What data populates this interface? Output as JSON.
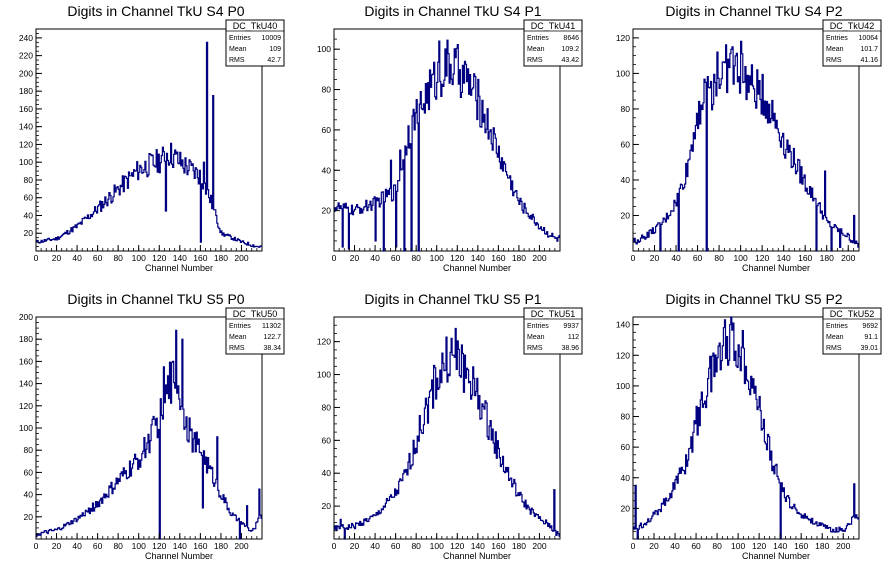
{
  "chart_data": [
    {
      "type": "histogram",
      "title": "Digits in Channel TkU S4 P0",
      "xlabel": "Channel Number",
      "xlim": [
        0,
        220
      ],
      "ylim": [
        0,
        250
      ],
      "xticks": [
        "0",
        "20",
        "40",
        "60",
        "80",
        "100",
        "120",
        "140",
        "160",
        "180",
        "200"
      ],
      "yticks": [
        "20",
        "40",
        "60",
        "80",
        "100",
        "120",
        "140",
        "160",
        "180",
        "200",
        "220",
        "240"
      ],
      "yticks_values": [
        20,
        40,
        60,
        80,
        100,
        120,
        140,
        160,
        180,
        200,
        220,
        240
      ],
      "stats": {
        "name": "DC_TkU40",
        "entries_label": "Entries",
        "entries": "10009",
        "mean_label": "Mean",
        "mean": "109",
        "rms_label": "RMS",
        "rms": "42.7"
      },
      "line_color": "#000080",
      "profile": [
        [
          0,
          10
        ],
        [
          20,
          14
        ],
        [
          40,
          28
        ],
        [
          60,
          48
        ],
        [
          80,
          70
        ],
        [
          100,
          92
        ],
        [
          120,
          102
        ],
        [
          130,
          110
        ],
        [
          140,
          100
        ],
        [
          150,
          92
        ],
        [
          160,
          84
        ],
        [
          170,
          56
        ],
        [
          180,
          20
        ],
        [
          200,
          10
        ],
        [
          215,
          5
        ]
      ],
      "spikes": [
        [
          126,
          45
        ],
        [
          127,
          110
        ],
        [
          160,
          10
        ],
        [
          163,
          100
        ],
        [
          166,
          235
        ],
        [
          168,
          60
        ],
        [
          172,
          175
        ],
        [
          175,
          40
        ]
      ]
    },
    {
      "type": "histogram",
      "title": "Digits in Channel TkU S4 P1",
      "xlabel": "Channel Number",
      "xlim": [
        0,
        220
      ],
      "ylim": [
        0,
        110
      ],
      "xticks": [
        "0",
        "20",
        "40",
        "60",
        "80",
        "100",
        "120",
        "140",
        "160",
        "180",
        "200"
      ],
      "yticks": [
        "20",
        "40",
        "60",
        "80",
        "100"
      ],
      "yticks_values": [
        20,
        40,
        60,
        80,
        100
      ],
      "stats": {
        "name": "DC_TkU41",
        "entries_label": "Entries",
        "entries": "8646",
        "mean_label": "Mean",
        "mean": "109.2",
        "rms_label": "RMS",
        "rms": "43.42"
      },
      "line_color": "#000080",
      "profile": [
        [
          0,
          22
        ],
        [
          20,
          20
        ],
        [
          40,
          24
        ],
        [
          60,
          30
        ],
        [
          70,
          55
        ],
        [
          80,
          68
        ],
        [
          90,
          78
        ],
        [
          100,
          86
        ],
        [
          110,
          92
        ],
        [
          120,
          90
        ],
        [
          130,
          84
        ],
        [
          140,
          74
        ],
        [
          150,
          62
        ],
        [
          160,
          48
        ],
        [
          170,
          36
        ],
        [
          180,
          24
        ],
        [
          200,
          12
        ],
        [
          215,
          6
        ]
      ],
      "spikes": [
        [
          8,
          2
        ],
        [
          14,
          1
        ],
        [
          40,
          5
        ],
        [
          48,
          0
        ],
        [
          55,
          45
        ],
        [
          60,
          2
        ],
        [
          64,
          50
        ],
        [
          68,
          0
        ],
        [
          72,
          62
        ],
        [
          75,
          0
        ],
        [
          78,
          60
        ],
        [
          82,
          0
        ],
        [
          86,
          70
        ],
        [
          102,
          104
        ],
        [
          140,
          85
        ]
      ]
    },
    {
      "type": "histogram",
      "title": "Digits in Channel TkU S4 P2",
      "xlabel": "Channel Number",
      "xlim": [
        0,
        210
      ],
      "ylim": [
        0,
        125
      ],
      "xticks": [
        "0",
        "20",
        "40",
        "60",
        "80",
        "100",
        "120",
        "140",
        "160",
        "180",
        "200"
      ],
      "yticks": [
        "20",
        "40",
        "60",
        "80",
        "100",
        "120"
      ],
      "yticks_values": [
        20,
        40,
        60,
        80,
        100,
        120
      ],
      "stats": {
        "name": "DC_TkU42",
        "entries_label": "Entries",
        "entries": "10064",
        "mean_label": "Mean",
        "mean": "101.7",
        "rms_label": "RMS",
        "rms": "41.16"
      },
      "line_color": "#000080",
      "profile": [
        [
          0,
          5
        ],
        [
          10,
          8
        ],
        [
          20,
          12
        ],
        [
          30,
          18
        ],
        [
          40,
          28
        ],
        [
          50,
          46
        ],
        [
          60,
          80
        ],
        [
          70,
          90
        ],
        [
          80,
          98
        ],
        [
          90,
          105
        ],
        [
          100,
          100
        ],
        [
          110,
          92
        ],
        [
          120,
          88
        ],
        [
          130,
          76
        ],
        [
          140,
          62
        ],
        [
          150,
          50
        ],
        [
          160,
          38
        ],
        [
          170,
          28
        ],
        [
          180,
          16
        ],
        [
          190,
          12
        ],
        [
          200,
          8
        ],
        [
          210,
          2
        ]
      ],
      "spikes": [
        [
          25,
          0
        ],
        [
          42,
          0
        ],
        [
          68,
          0
        ],
        [
          78,
          112
        ],
        [
          92,
          115
        ],
        [
          100,
          118
        ],
        [
          170,
          0
        ],
        [
          178,
          45
        ],
        [
          184,
          0
        ],
        [
          192,
          2
        ],
        [
          205,
          20
        ]
      ]
    },
    {
      "type": "histogram",
      "title": "Digits in Channel TkU S5 P0",
      "xlabel": "Channel Number",
      "xlim": [
        0,
        220
      ],
      "ylim": [
        0,
        200
      ],
      "xticks": [
        "0",
        "20",
        "40",
        "60",
        "80",
        "100",
        "120",
        "140",
        "160",
        "180",
        "200"
      ],
      "yticks": [
        "20",
        "40",
        "60",
        "80",
        "100",
        "120",
        "140",
        "160",
        "180",
        "200"
      ],
      "yticks_values": [
        20,
        40,
        60,
        80,
        100,
        120,
        140,
        160,
        180,
        200
      ],
      "stats": {
        "name": "DC_TkU50",
        "entries_label": "Entries",
        "entries": "11302",
        "mean_label": "Mean",
        "mean": "122.7",
        "rms_label": "RMS",
        "rms": "38.34"
      },
      "line_color": "#000080",
      "profile": [
        [
          0,
          4
        ],
        [
          20,
          8
        ],
        [
          40,
          18
        ],
        [
          60,
          32
        ],
        [
          80,
          52
        ],
        [
          100,
          72
        ],
        [
          110,
          90
        ],
        [
          120,
          110
        ],
        [
          130,
          140
        ],
        [
          135,
          150
        ],
        [
          140,
          130
        ],
        [
          150,
          92
        ],
        [
          160,
          80
        ],
        [
          170,
          60
        ],
        [
          180,
          40
        ],
        [
          190,
          22
        ],
        [
          200,
          14
        ],
        [
          210,
          6
        ],
        [
          218,
          20
        ]
      ],
      "spikes": [
        [
          120,
          0
        ],
        [
          124,
          155
        ],
        [
          136,
          188
        ],
        [
          142,
          180
        ],
        [
          162,
          28
        ],
        [
          176,
          92
        ],
        [
          198,
          0
        ],
        [
          205,
          30
        ],
        [
          217,
          45
        ]
      ]
    },
    {
      "type": "histogram",
      "title": "Digits in Channel TkU S5 P1",
      "xlabel": "Channel Number",
      "xlim": [
        0,
        220
      ],
      "ylim": [
        0,
        135
      ],
      "xticks": [
        "0",
        "20",
        "40",
        "60",
        "80",
        "100",
        "120",
        "140",
        "160",
        "180",
        "200"
      ],
      "yticks": [
        "20",
        "40",
        "60",
        "80",
        "100",
        "120"
      ],
      "yticks_values": [
        20,
        40,
        60,
        80,
        100,
        120
      ],
      "stats": {
        "name": "DC_TkU51",
        "entries_label": "Entries",
        "entries": "9937",
        "mean_label": "Mean",
        "mean": "112",
        "rms_label": "RMS",
        "rms": "38.96"
      },
      "line_color": "#000080",
      "profile": [
        [
          0,
          6
        ],
        [
          20,
          8
        ],
        [
          40,
          14
        ],
        [
          60,
          28
        ],
        [
          70,
          40
        ],
        [
          80,
          60
        ],
        [
          90,
          80
        ],
        [
          100,
          98
        ],
        [
          110,
          110
        ],
        [
          120,
          108
        ],
        [
          130,
          100
        ],
        [
          140,
          86
        ],
        [
          150,
          70
        ],
        [
          160,
          52
        ],
        [
          170,
          38
        ],
        [
          180,
          26
        ],
        [
          190,
          18
        ],
        [
          200,
          12
        ],
        [
          210,
          8
        ],
        [
          218,
          2
        ]
      ],
      "spikes": [
        [
          6,
          12
        ],
        [
          10,
          0
        ],
        [
          114,
          122
        ],
        [
          118,
          128
        ],
        [
          124,
          118
        ],
        [
          214,
          30
        ]
      ]
    },
    {
      "type": "histogram",
      "title": "Digits in Channel TkU S5 P2",
      "xlabel": "Channel Number",
      "xlim": [
        0,
        215
      ],
      "ylim": [
        0,
        145
      ],
      "xticks": [
        "0",
        "20",
        "40",
        "60",
        "80",
        "100",
        "120",
        "140",
        "160",
        "180",
        "200"
      ],
      "yticks": [
        "20",
        "40",
        "60",
        "80",
        "100",
        "120",
        "140"
      ],
      "yticks_values": [
        20,
        40,
        60,
        80,
        100,
        120,
        140
      ],
      "stats": {
        "name": "DC_TkU52",
        "entries_label": "Entries",
        "entries": "9692",
        "mean_label": "Mean",
        "mean": "91.1",
        "rms_label": "RMS",
        "rms": "39.01"
      },
      "line_color": "#000080",
      "profile": [
        [
          0,
          6
        ],
        [
          10,
          10
        ],
        [
          20,
          16
        ],
        [
          30,
          24
        ],
        [
          40,
          36
        ],
        [
          50,
          50
        ],
        [
          60,
          76
        ],
        [
          70,
          100
        ],
        [
          80,
          120
        ],
        [
          90,
          132
        ],
        [
          100,
          126
        ],
        [
          110,
          112
        ],
        [
          120,
          84
        ],
        [
          130,
          56
        ],
        [
          140,
          34
        ],
        [
          150,
          22
        ],
        [
          160,
          16
        ],
        [
          170,
          12
        ],
        [
          180,
          8
        ],
        [
          190,
          6
        ],
        [
          200,
          6
        ],
        [
          210,
          14
        ]
      ],
      "spikes": [
        [
          2,
          35
        ],
        [
          4,
          0
        ],
        [
          86,
          138
        ],
        [
          92,
          140
        ],
        [
          140,
          0
        ],
        [
          210,
          36
        ]
      ]
    }
  ]
}
